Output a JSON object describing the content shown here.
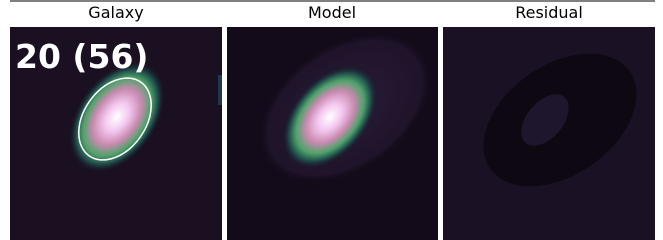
{
  "panels": [
    {
      "title": "Galaxy"
    },
    {
      "title": "Model"
    },
    {
      "title": "Residual"
    }
  ],
  "annotation": "20 (56)"
}
